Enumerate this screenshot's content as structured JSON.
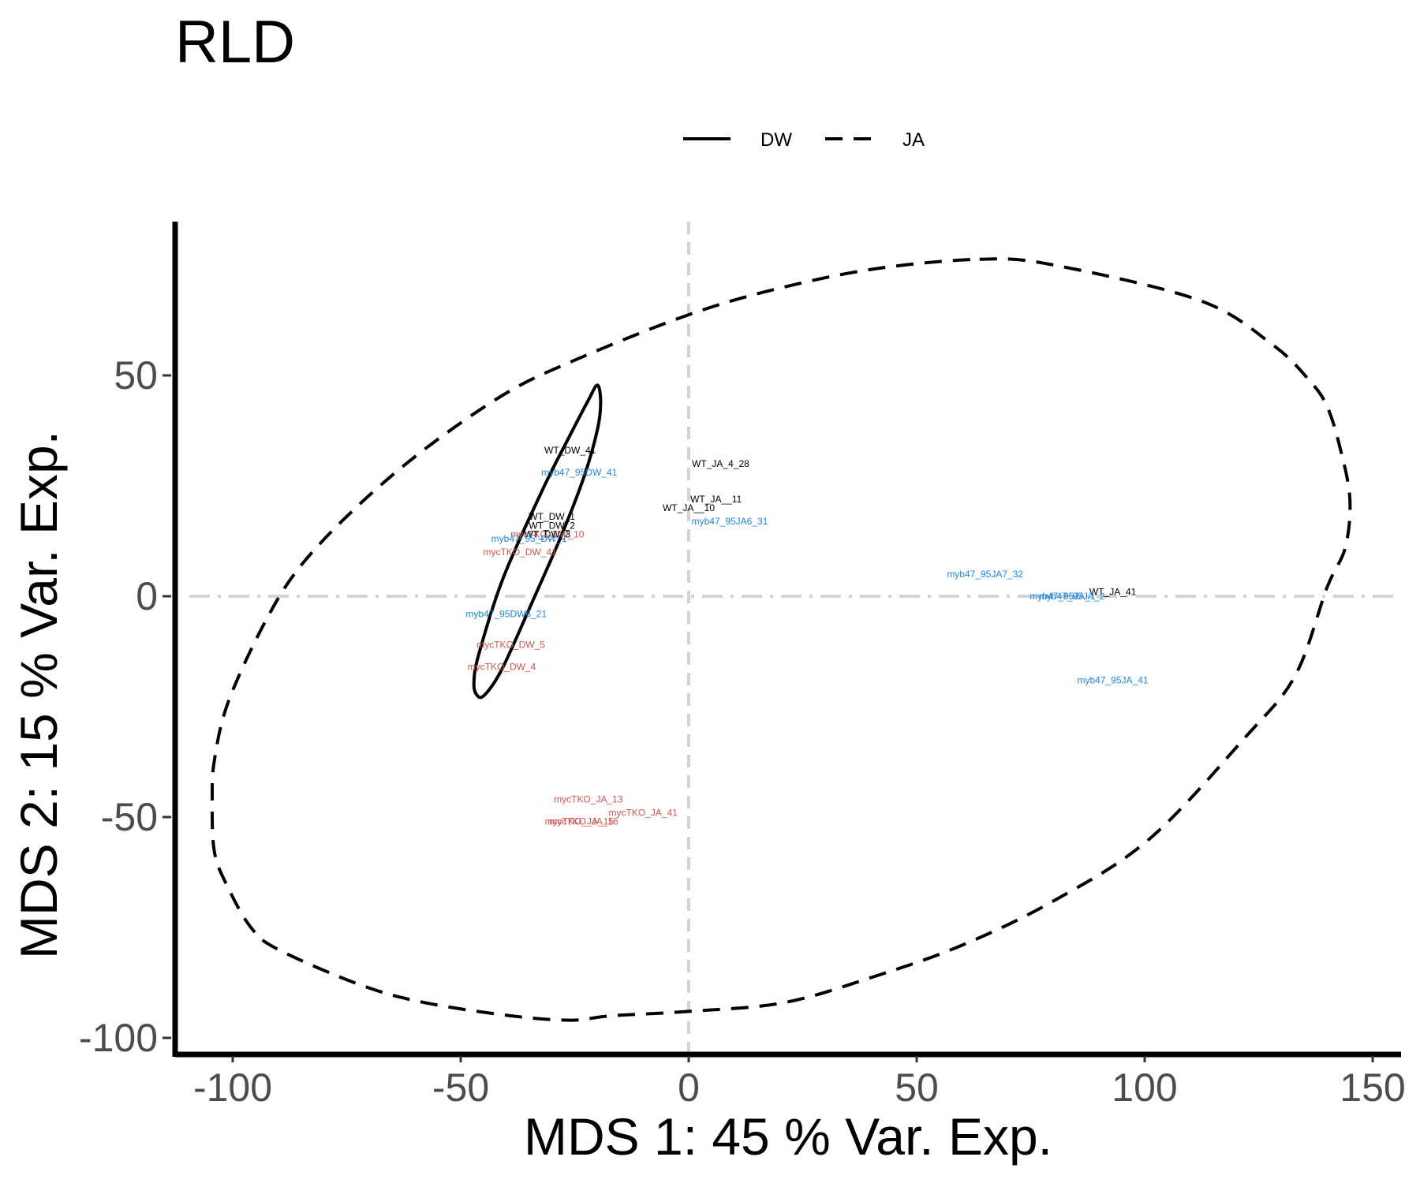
{
  "chart_data": {
    "type": "scatter",
    "title": "RLD",
    "xlabel": "MDS 1: 45 % Var. Exp.",
    "ylabel": "MDS 2: 15 % Var. Exp.",
    "xlim": [
      -113,
      151
    ],
    "ylim": [
      -103,
      84
    ],
    "xticks": [
      -100,
      -50,
      0,
      50,
      100,
      150
    ],
    "xtick_labels": [
      "-100",
      "-50",
      "0",
      "50",
      "100",
      "150"
    ],
    "yticks": [
      50,
      0,
      -50,
      -100
    ],
    "ytick_labels": [
      "50",
      "0",
      "-50",
      "-100"
    ],
    "reference_lines": {
      "x": 0,
      "y": 0,
      "color": "#d3d3d3"
    },
    "grid": false,
    "legend": {
      "position": "top",
      "entries": [
        {
          "label": "DW",
          "linetype": "solid"
        },
        {
          "label": "JA",
          "linetype": "dashed"
        }
      ]
    },
    "colors": {
      "WT": "#000000",
      "myb47": "#1e88e5",
      "mycTKO": "#d9534f"
    },
    "points": [
      {
        "label": "WT_DW_41",
        "x": -26,
        "y": 33,
        "group": "WT"
      },
      {
        "label": "myb47_95DW_41",
        "x": -24,
        "y": 28,
        "group": "myb47"
      },
      {
        "label": "WT_DW_1",
        "x": -30,
        "y": 18,
        "group": "WT"
      },
      {
        "label": "WT_DW_2",
        "x": -30,
        "y": 16,
        "group": "WT"
      },
      {
        "label": "mycTKO_DW_10",
        "x": -31,
        "y": 14,
        "group": "mycTKO"
      },
      {
        "label": "WT_DW_3",
        "x": -31,
        "y": 14,
        "group": "WT"
      },
      {
        "label": "myb47_95_DW_1",
        "x": -35,
        "y": 13,
        "group": "myb47"
      },
      {
        "label": "mycTKO_DW_41",
        "x": -37,
        "y": 10,
        "group": "mycTKO"
      },
      {
        "label": "WT_JA_4_28",
        "x": 7,
        "y": 30,
        "group": "WT"
      },
      {
        "label": "WT_JA__11",
        "x": 6,
        "y": 22,
        "group": "WT"
      },
      {
        "label": "WT_JA__10",
        "x": 0,
        "y": 20,
        "group": "WT"
      },
      {
        "label": "myb47_95JA6_31",
        "x": 9,
        "y": 17,
        "group": "myb47"
      },
      {
        "label": "myb47_95JA7_32",
        "x": 65,
        "y": 5,
        "group": "myb47"
      },
      {
        "label": "WT_JA_41",
        "x": 93,
        "y": 1,
        "group": "WT"
      },
      {
        "label": "myb47_95JA_1",
        "x": 82,
        "y": 0,
        "group": "myb47"
      },
      {
        "label": "myb47_95JA_2",
        "x": 84,
        "y": 0,
        "group": "myb47"
      },
      {
        "label": "myb47_95JA_41",
        "x": 93,
        "y": -19,
        "group": "myb47"
      },
      {
        "label": "myb47_95DW6_21",
        "x": -40,
        "y": -4,
        "group": "myb47"
      },
      {
        "label": "mycTKO_DW_5",
        "x": -39,
        "y": -11,
        "group": "mycTKO"
      },
      {
        "label": "mycTKO_DW_4",
        "x": -41,
        "y": -16,
        "group": "mycTKO"
      },
      {
        "label": "mycTKO_JA_13",
        "x": -22,
        "y": -46,
        "group": "mycTKO"
      },
      {
        "label": "mycTKO_JA_41",
        "x": -10,
        "y": -49,
        "group": "mycTKO"
      },
      {
        "label": "mycTKO_JA_15",
        "x": -24,
        "y": -51,
        "group": "mycTKO"
      },
      {
        "label": "mycTKO_JA_16",
        "x": -23,
        "y": -51,
        "group": "mycTKO"
      }
    ],
    "ellipses": [
      {
        "name": "DW",
        "linetype": "solid",
        "points": [
          [
            -19.3,
            43.9
          ],
          [
            -20.0,
            37.8
          ],
          [
            -22.9,
            27.2
          ],
          [
            -27.9,
            13.8
          ],
          [
            -34.4,
            -1.5
          ],
          [
            -40.9,
            -16.4
          ],
          [
            -44.8,
            -22.4
          ],
          [
            -46.5,
            -22.3
          ],
          [
            -47.1,
            -19.5
          ],
          [
            -46.0,
            -13.0
          ],
          [
            -40.7,
            4.1
          ],
          [
            -32.0,
            24.2
          ],
          [
            -26.2,
            36.1
          ],
          [
            -22.0,
            44.4
          ],
          [
            -20.0,
            47.8
          ],
          [
            -19.3,
            43.9
          ]
        ]
      },
      {
        "name": "JA",
        "linetype": "dashed",
        "points": [
          [
            63.8,
            76.3
          ],
          [
            80.0,
            75.0
          ],
          [
            112.0,
            67.0
          ],
          [
            128.0,
            57.0
          ],
          [
            136.0,
            49.0
          ],
          [
            140.0,
            43.0
          ],
          [
            143.0,
            33.0
          ],
          [
            145.0,
            22.0
          ],
          [
            144.0,
            11.0
          ],
          [
            140.0,
            2.0
          ],
          [
            133.0,
            -18.0
          ],
          [
            122.0,
            -32.0
          ],
          [
            101.0,
            -55.0
          ],
          [
            80.0,
            -69.0
          ],
          [
            60.0,
            -79.0
          ],
          [
            41.0,
            -86.0
          ],
          [
            21.0,
            -92.0
          ],
          [
            0.0,
            -94.0
          ],
          [
            -17.0,
            -95.0
          ],
          [
            -26.0,
            -96.0
          ],
          [
            -39.0,
            -95.0
          ],
          [
            -58.0,
            -92.0
          ],
          [
            -72.0,
            -88.0
          ],
          [
            -90.0,
            -80.0
          ],
          [
            -96.0,
            -75.0
          ],
          [
            -101.0,
            -66.0
          ],
          [
            -104.0,
            -58.0
          ],
          [
            -104.5,
            -46.0
          ],
          [
            -104.0,
            -37.0
          ],
          [
            -101.0,
            -24.0
          ],
          [
            -93.0,
            -6.0
          ],
          [
            -85.0,
            7.0
          ],
          [
            -72.0,
            21.0
          ],
          [
            -57.0,
            34.0
          ],
          [
            -40.0,
            46.0
          ],
          [
            -26.0,
            53.0
          ],
          [
            -2.0,
            63.0
          ],
          [
            17.0,
            69.0
          ],
          [
            40.0,
            74.0
          ],
          [
            63.8,
            76.3
          ]
        ]
      }
    ]
  }
}
